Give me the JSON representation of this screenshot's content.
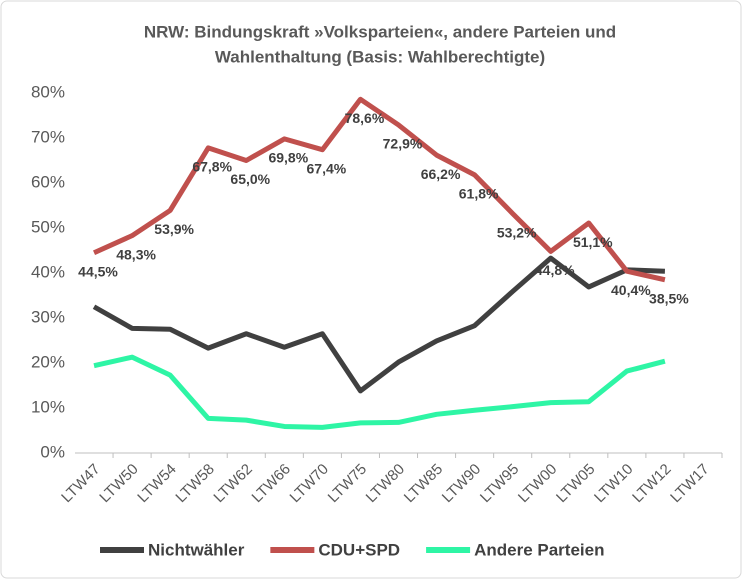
{
  "chart_data": {
    "type": "line",
    "title": [
      "NRW: Bindungskraft »Volksparteien«, andere Parteien und",
      "Wahlenthaltung (Basis: Wahlberechtigte)"
    ],
    "categories": [
      "LTW47",
      "LTW50",
      "LTW54",
      "LTW58",
      "LTW62",
      "LTW66",
      "LTW70",
      "LTW75",
      "LTW80",
      "LTW85",
      "LTW90",
      "LTW95",
      "LTW00",
      "LTW05",
      "LTW10",
      "LTW12",
      "LTW17"
    ],
    "series": [
      {
        "name": "Nichtwähler",
        "color": "#404040",
        "values": [
          32.5,
          27.7,
          27.5,
          23.3,
          26.5,
          23.5,
          26.5,
          13.8,
          20.2,
          24.9,
          28.3,
          35.9,
          43.3,
          36.9,
          40.7,
          40.4,
          null
        ]
      },
      {
        "name": "CDU+SPD",
        "color": "#c0504d",
        "values": [
          44.5,
          48.3,
          53.9,
          67.8,
          65.0,
          69.8,
          67.4,
          78.6,
          72.9,
          66.2,
          61.8,
          53.2,
          44.8,
          51.1,
          40.4,
          38.5,
          null
        ],
        "value_labels": [
          "44,5%",
          "48,3%",
          "53,9%",
          "67,8%",
          "65,0%",
          "69,8%",
          "67,4%",
          "78,6%",
          "72,9%",
          "66,2%",
          "61,8%",
          "53,2%",
          "44,8%",
          "51,1%",
          "40,4%",
          "38,5%",
          null
        ]
      },
      {
        "name": "Andere Parteien",
        "color": "#2ef5a5",
        "values": [
          19.4,
          21.3,
          17.3,
          7.7,
          7.3,
          5.9,
          5.7,
          6.7,
          6.8,
          8.6,
          9.5,
          10.3,
          11.2,
          11.4,
          18.2,
          20.4,
          null
        ]
      }
    ],
    "ylim": [
      0,
      80
    ],
    "yticks": [
      {
        "value": 0,
        "label": "0%"
      },
      {
        "value": 10,
        "label": "10%"
      },
      {
        "value": 20,
        "label": "20%"
      },
      {
        "value": 30,
        "label": "30%"
      },
      {
        "value": 40,
        "label": "40%"
      },
      {
        "value": 50,
        "label": "50%"
      },
      {
        "value": 60,
        "label": "60%"
      },
      {
        "value": 70,
        "label": "70%"
      },
      {
        "value": 80,
        "label": "80%"
      }
    ],
    "grid": false,
    "legend": "bottom"
  }
}
